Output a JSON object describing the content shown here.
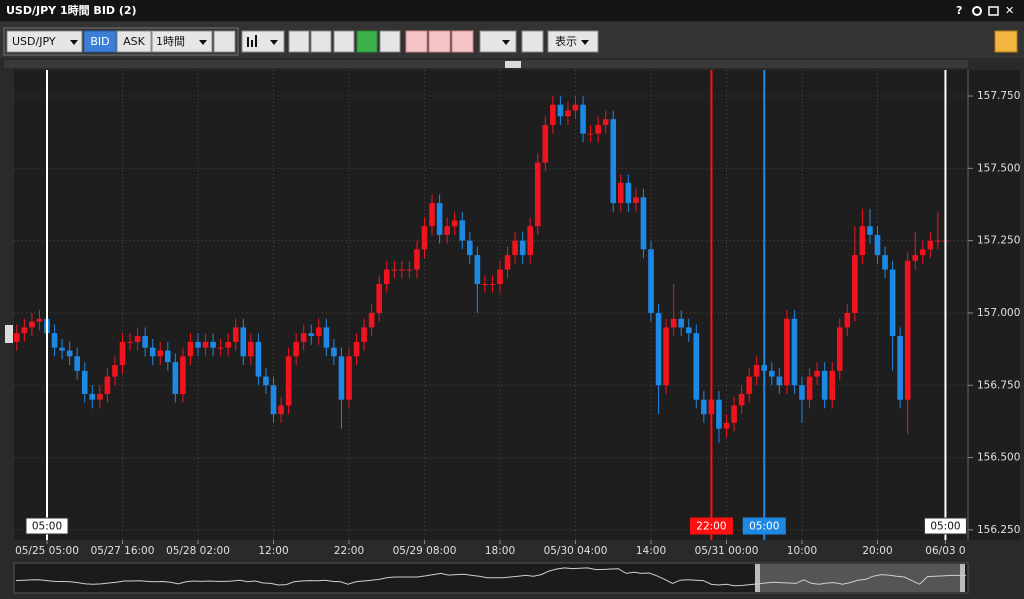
{
  "window": {
    "title": "USD/JPY 1時間 BID (2)",
    "help": "?"
  },
  "toolbar": {
    "symbol": "USD/JPY",
    "bid": "BID",
    "ask": "ASK",
    "interval": "1時間",
    "display": "表示"
  },
  "chart_data": {
    "type": "candlestick",
    "categories": [
      null,
      null,
      null,
      null,
      "05/25 05:00",
      null,
      null,
      null,
      null,
      null,
      null,
      null,
      null,
      null,
      "05/27 16:00",
      null,
      null,
      null,
      null,
      null,
      null,
      null,
      null,
      null,
      "05/28 02:00",
      null,
      null,
      null,
      null,
      null,
      null,
      null,
      null,
      null,
      "12:00",
      null,
      null,
      null,
      null,
      null,
      null,
      null,
      null,
      null,
      "22:00",
      null,
      null,
      null,
      null,
      null,
      null,
      null,
      null,
      null,
      "05/29 08:00",
      null,
      null,
      null,
      null,
      null,
      null,
      null,
      null,
      null,
      "18:00",
      null,
      null,
      null,
      null,
      null,
      null,
      null,
      null,
      null,
      "05/30 04:00",
      null,
      null,
      null,
      null,
      null,
      null,
      null,
      null,
      null,
      "14:00",
      null,
      null,
      null,
      null,
      null,
      null,
      null,
      null,
      null,
      "05/31 00:00",
      null,
      null,
      null,
      null,
      null,
      null,
      null,
      null,
      null,
      "10:00",
      null,
      null,
      null,
      null,
      null,
      null,
      null,
      null,
      null,
      "20:00",
      null,
      null,
      null,
      null,
      null,
      null,
      null,
      null,
      "06/03 0"
    ],
    "open": [
      156.9,
      156.93,
      156.95,
      156.97,
      156.98,
      156.93,
      156.88,
      156.87,
      156.85,
      156.8,
      156.72,
      156.7,
      156.72,
      156.78,
      156.82,
      156.9,
      156.9,
      156.92,
      156.88,
      156.85,
      156.87,
      156.83,
      156.72,
      156.85,
      156.9,
      156.88,
      156.9,
      156.88,
      156.88,
      156.9,
      156.95,
      156.85,
      156.9,
      156.78,
      156.75,
      156.65,
      156.68,
      156.85,
      156.9,
      156.93,
      156.92,
      156.95,
      156.88,
      156.85,
      156.7,
      156.85,
      156.9,
      156.95,
      157.0,
      157.1,
      157.15,
      157.15,
      157.15,
      157.15,
      157.22,
      157.3,
      157.38,
      157.27,
      157.3,
      157.32,
      157.25,
      157.2,
      157.1,
      157.1,
      157.1,
      157.15,
      157.2,
      157.25,
      157.2,
      157.3,
      157.52,
      157.65,
      157.72,
      157.68,
      157.7,
      157.72,
      157.62,
      157.62,
      157.65,
      157.67,
      157.38,
      157.45,
      157.38,
      157.4,
      157.22,
      157.0,
      156.75,
      156.95,
      156.98,
      156.95,
      156.93,
      156.7,
      156.65,
      156.7,
      156.6,
      156.62,
      156.68,
      156.72,
      156.78,
      156.82,
      156.8,
      156.78,
      156.75,
      156.98,
      156.75,
      156.7,
      156.78,
      156.8,
      156.7,
      156.8,
      156.95,
      157.0,
      157.2,
      157.3,
      157.27,
      157.2,
      157.15,
      156.92,
      156.7,
      157.18,
      157.2,
      157.22,
      157.25,
      157.25
    ],
    "high": [
      156.96,
      156.98,
      157.0,
      157.01,
      157.01,
      156.96,
      156.91,
      156.9,
      156.88,
      156.83,
      156.75,
      156.75,
      156.81,
      156.85,
      156.93,
      156.93,
      156.95,
      156.95,
      156.91,
      156.9,
      156.9,
      156.86,
      156.88,
      156.93,
      156.93,
      156.93,
      156.93,
      156.91,
      156.93,
      156.98,
      156.98,
      156.93,
      156.93,
      156.81,
      156.78,
      156.71,
      156.88,
      156.93,
      156.96,
      156.96,
      156.98,
      156.98,
      156.91,
      156.88,
      156.88,
      156.93,
      156.98,
      157.03,
      157.13,
      157.18,
      157.18,
      157.18,
      157.18,
      157.25,
      157.33,
      157.41,
      157.41,
      157.33,
      157.35,
      157.35,
      157.28,
      157.23,
      157.13,
      157.13,
      157.18,
      157.23,
      157.28,
      157.28,
      157.33,
      157.55,
      157.68,
      157.75,
      157.75,
      157.73,
      157.75,
      157.75,
      157.65,
      157.68,
      157.7,
      157.7,
      157.48,
      157.48,
      157.43,
      157.43,
      157.25,
      157.03,
      156.98,
      157.1,
      157.01,
      156.98,
      156.96,
      156.73,
      156.9,
      156.73,
      156.65,
      156.71,
      156.75,
      156.81,
      156.85,
      156.85,
      156.83,
      156.81,
      157.01,
      157.01,
      156.78,
      156.81,
      156.83,
      156.83,
      156.83,
      156.98,
      157.03,
      157.3,
      157.36,
      157.36,
      157.3,
      157.23,
      157.18,
      156.95,
      157.21,
      157.28,
      157.25,
      157.28,
      157.35,
      157.28
    ],
    "low": [
      156.87,
      156.9,
      156.92,
      156.94,
      156.9,
      156.85,
      156.84,
      156.82,
      156.77,
      156.69,
      156.67,
      156.67,
      156.69,
      156.75,
      156.79,
      156.87,
      156.87,
      156.85,
      156.82,
      156.82,
      156.8,
      156.69,
      156.69,
      156.82,
      156.85,
      156.85,
      156.85,
      156.85,
      156.85,
      156.87,
      156.82,
      156.82,
      156.75,
      156.72,
      156.62,
      156.62,
      156.65,
      156.82,
      156.87,
      156.89,
      156.89,
      156.85,
      156.82,
      156.6,
      156.67,
      156.82,
      156.87,
      156.92,
      156.97,
      157.07,
      157.12,
      157.12,
      157.12,
      157.12,
      157.19,
      157.27,
      157.24,
      157.24,
      157.27,
      157.22,
      157.17,
      157.0,
      157.07,
      157.07,
      157.07,
      157.12,
      157.17,
      157.17,
      157.17,
      157.27,
      157.49,
      157.62,
      157.65,
      157.65,
      157.67,
      157.59,
      157.59,
      157.59,
      157.62,
      157.35,
      157.35,
      157.35,
      157.35,
      157.19,
      156.97,
      156.65,
      156.72,
      156.92,
      156.92,
      156.9,
      156.67,
      156.62,
      156.3,
      156.55,
      156.57,
      156.59,
      156.65,
      156.69,
      156.75,
      156.77,
      156.75,
      156.72,
      156.72,
      156.72,
      156.62,
      156.67,
      156.75,
      156.67,
      156.67,
      156.77,
      156.92,
      156.97,
      157.17,
      157.24,
      157.17,
      157.12,
      156.8,
      156.67,
      156.58,
      157.15,
      157.17,
      157.19,
      157.22,
      157.22
    ],
    "close": [
      156.93,
      156.95,
      156.97,
      156.98,
      156.93,
      156.88,
      156.87,
      156.85,
      156.8,
      156.72,
      156.7,
      156.72,
      156.78,
      156.82,
      156.9,
      156.9,
      156.92,
      156.88,
      156.85,
      156.87,
      156.83,
      156.72,
      156.85,
      156.9,
      156.88,
      156.9,
      156.88,
      156.88,
      156.9,
      156.95,
      156.85,
      156.9,
      156.78,
      156.75,
      156.65,
      156.68,
      156.85,
      156.9,
      156.93,
      156.92,
      156.95,
      156.88,
      156.85,
      156.7,
      156.85,
      156.9,
      156.95,
      157.0,
      157.1,
      157.15,
      157.15,
      157.15,
      157.15,
      157.22,
      157.3,
      157.38,
      157.27,
      157.3,
      157.32,
      157.25,
      157.2,
      157.1,
      157.1,
      157.1,
      157.15,
      157.2,
      157.25,
      157.2,
      157.3,
      157.52,
      157.65,
      157.72,
      157.68,
      157.7,
      157.72,
      157.62,
      157.62,
      157.65,
      157.67,
      157.38,
      157.45,
      157.38,
      157.4,
      157.22,
      157.0,
      156.75,
      156.95,
      156.98,
      156.95,
      156.93,
      156.7,
      156.65,
      156.7,
      156.6,
      156.62,
      156.68,
      156.72,
      156.78,
      156.82,
      156.8,
      156.78,
      156.75,
      156.98,
      156.75,
      156.7,
      156.78,
      156.8,
      156.7,
      156.8,
      156.95,
      157.0,
      157.2,
      157.3,
      157.27,
      157.2,
      157.15,
      156.92,
      156.7,
      157.18,
      157.2,
      157.22,
      157.25,
      157.25,
      157.25
    ],
    "up_color": "#f0141e",
    "down_color": "#1e88e5",
    "ylim": [
      156.215,
      157.84
    ],
    "yticks": [
      {
        "value": 156.25,
        "label": "156.250"
      },
      {
        "value": 156.5,
        "label": "156.500"
      },
      {
        "value": 156.75,
        "label": "156.750"
      },
      {
        "value": 157,
        "label": "157.000"
      },
      {
        "value": 157.25,
        "label": "157.250"
      },
      {
        "value": 157.5,
        "label": "157.500"
      },
      {
        "value": 157.75,
        "label": "157.750"
      }
    ],
    "grid": true,
    "markers": [
      {
        "index": 4,
        "label": "05:00",
        "color": "#ffffff"
      },
      {
        "index": 92,
        "label": "22:00",
        "color": "#ff1010"
      },
      {
        "index": 99,
        "label": "05:00",
        "color": "#1e88e5"
      },
      {
        "index": 123,
        "label": "05:00",
        "color": "#ffffff"
      }
    ]
  }
}
